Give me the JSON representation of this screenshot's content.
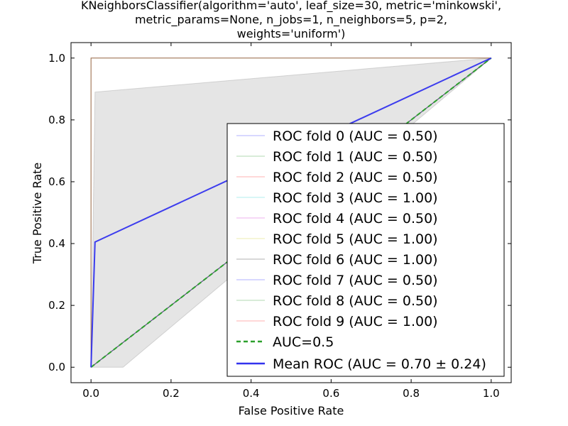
{
  "chart_data": {
    "type": "line",
    "title_lines": [
      "KNeighborsClassifier(algorithm='auto', leaf_size=30, metric='minkowski',",
      "metric_params=None, n_jobs=1, n_neighbors=5, p=2,",
      "weights='uniform')"
    ],
    "xlabel": "False Positive Rate",
    "ylabel": "True Positive Rate",
    "xlim": [
      -0.05,
      1.05
    ],
    "ylim": [
      -0.05,
      1.05
    ],
    "xticks": [
      0.0,
      0.2,
      0.4,
      0.6,
      0.8,
      1.0
    ],
    "yticks": [
      0.0,
      0.2,
      0.4,
      0.6,
      0.8,
      1.0
    ],
    "tick_labels": [
      "0.0",
      "0.2",
      "0.4",
      "0.6",
      "0.8",
      "1.0"
    ],
    "grid": false,
    "legend_position": "lower-right",
    "series": [
      {
        "name": "ROC fold 0 (AUC = 0.50)",
        "color": "#0000ff",
        "style": "solid",
        "x": [
          0,
          1,
          1
        ],
        "y": [
          0,
          1,
          1
        ]
      },
      {
        "name": "ROC fold 1 (AUC = 0.50)",
        "color": "#008000",
        "style": "solid",
        "x": [
          0,
          1,
          1
        ],
        "y": [
          0,
          1,
          1
        ]
      },
      {
        "name": "ROC fold 2 (AUC = 0.50)",
        "color": "#ff0000",
        "style": "solid",
        "x": [
          0,
          1,
          1
        ],
        "y": [
          0,
          1,
          1
        ]
      },
      {
        "name": "ROC fold 3 (AUC = 1.00)",
        "color": "#00bfbf",
        "style": "solid",
        "x": [
          0,
          0,
          1
        ],
        "y": [
          0,
          1,
          1
        ]
      },
      {
        "name": "ROC fold 4 (AUC = 0.50)",
        "color": "#bf00bf",
        "style": "solid",
        "x": [
          0,
          1,
          1
        ],
        "y": [
          0,
          1,
          1
        ]
      },
      {
        "name": "ROC fold 5 (AUC = 1.00)",
        "color": "#bfbf00",
        "style": "solid",
        "x": [
          0,
          0,
          1
        ],
        "y": [
          0,
          1,
          1
        ]
      },
      {
        "name": "ROC fold 6 (AUC = 1.00)",
        "color": "#000000",
        "style": "solid",
        "x": [
          0,
          0,
          1
        ],
        "y": [
          0,
          1,
          1
        ]
      },
      {
        "name": "ROC fold 7 (AUC = 0.50)",
        "color": "#0000ff",
        "style": "solid",
        "x": [
          0,
          1,
          1
        ],
        "y": [
          0,
          1,
          1
        ]
      },
      {
        "name": "ROC fold 8 (AUC = 0.50)",
        "color": "#008000",
        "style": "solid",
        "x": [
          0,
          1,
          1
        ],
        "y": [
          0,
          1,
          1
        ]
      },
      {
        "name": "ROC fold 9 (AUC = 1.00)",
        "color": "#ff0000",
        "style": "solid",
        "x": [
          0,
          0,
          1
        ],
        "y": [
          0,
          1,
          1
        ]
      },
      {
        "name": "AUC=0.5",
        "color": "#2ca02c",
        "style": "dashed",
        "x": [
          0,
          1
        ],
        "y": [
          0,
          1
        ]
      },
      {
        "name": "Mean ROC (AUC = 0.70 $\\pm$ 0.24)",
        "legend_label": "Mean ROC (AUC = 0.70 ± 0.24)",
        "color": "#3333ee",
        "style": "solid",
        "x": [
          0,
          0.01,
          1
        ],
        "y": [
          0,
          0.405,
          1
        ]
      }
    ],
    "std_band": {
      "color": "#bfbfbf",
      "x": [
        0,
        0.01,
        1
      ],
      "upper": [
        0,
        0.89,
        1
      ],
      "lower": [
        0,
        0,
        1
      ],
      "lower_x": [
        0,
        0.08,
        1
      ]
    }
  }
}
